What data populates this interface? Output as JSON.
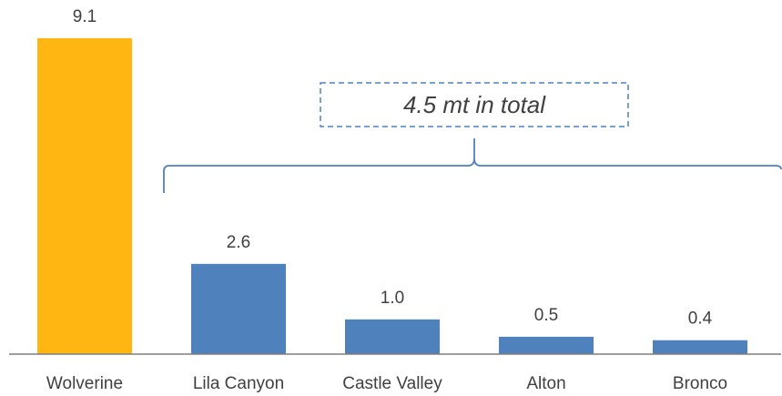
{
  "chart_data": {
    "type": "bar",
    "categories": [
      "Wolverine",
      "Lila Canyon",
      "Castle Valley",
      "Alton",
      "Bronco"
    ],
    "values": [
      9.1,
      2.6,
      1.0,
      0.5,
      0.4
    ],
    "value_labels": [
      "9.1",
      "2.6",
      "1.0",
      "0.5",
      "0.4"
    ],
    "bar_colors": [
      "#FFB612",
      "#4F81BD",
      "#4F81BD",
      "#4F81BD",
      "#4F81BD"
    ],
    "title": "",
    "xlabel": "",
    "ylabel": "",
    "ylim": [
      0,
      9.1
    ],
    "grid": false,
    "annotation": {
      "text": "4.5 mt in total",
      "spans_categories": [
        "Lila Canyon",
        "Castle Valley",
        "Alton",
        "Bronco"
      ]
    }
  }
}
